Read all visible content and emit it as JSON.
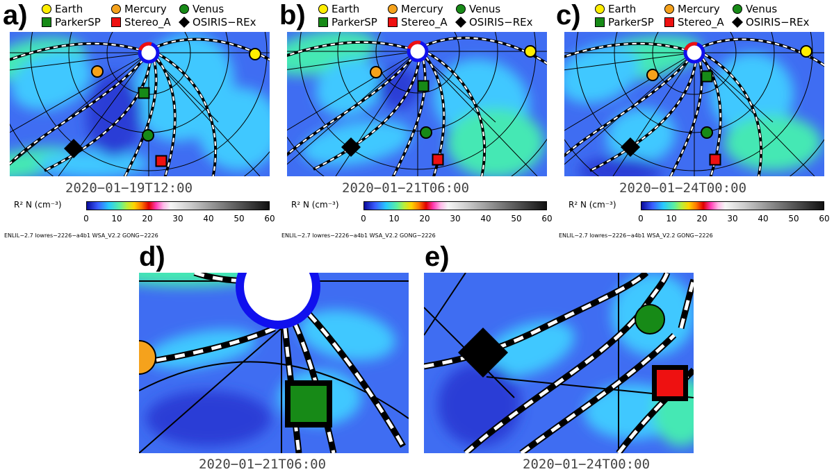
{
  "legend": {
    "items": [
      {
        "label": "Earth",
        "shape": "circle",
        "color": "#ffee00"
      },
      {
        "label": "Mercury",
        "shape": "circle",
        "color": "#f5a21c"
      },
      {
        "label": "Venus",
        "shape": "circle",
        "color": "#178a17"
      },
      {
        "label": "ParkerSP",
        "shape": "square",
        "color": "#178a17"
      },
      {
        "label": "Stereo_A",
        "shape": "square",
        "color": "#ee1111"
      },
      {
        "label": "OSIRIS−REx",
        "shape": "diamond",
        "color": "#000000"
      }
    ]
  },
  "colorbar": {
    "title": "R² N (cm⁻³)",
    "ticks": [
      "0",
      "10",
      "20",
      "30",
      "40",
      "50",
      "60"
    ]
  },
  "footer_text": "ENLIL−2.7 lowres−2226−a4b1 WSA_V2.2 GONG−2226",
  "panels": [
    {
      "label": "a)",
      "date": "2020−01−19T12:00"
    },
    {
      "label": "b)",
      "date": "2020−01−21T06:00"
    },
    {
      "label": "c)",
      "date": "2020−01−24T00:00"
    },
    {
      "label": "d)",
      "date": "2020−01−21T06:00"
    },
    {
      "label": "e)",
      "date": "2020−01−24T00:00"
    }
  ],
  "colors": {
    "background_blue": "#3f6df2",
    "dark_blue": "#2a3ed6",
    "cyan": "#3fc8ff",
    "green": "#45e8b4",
    "sun_blue": "#1010ee",
    "sun_red": "#ee1010"
  }
}
